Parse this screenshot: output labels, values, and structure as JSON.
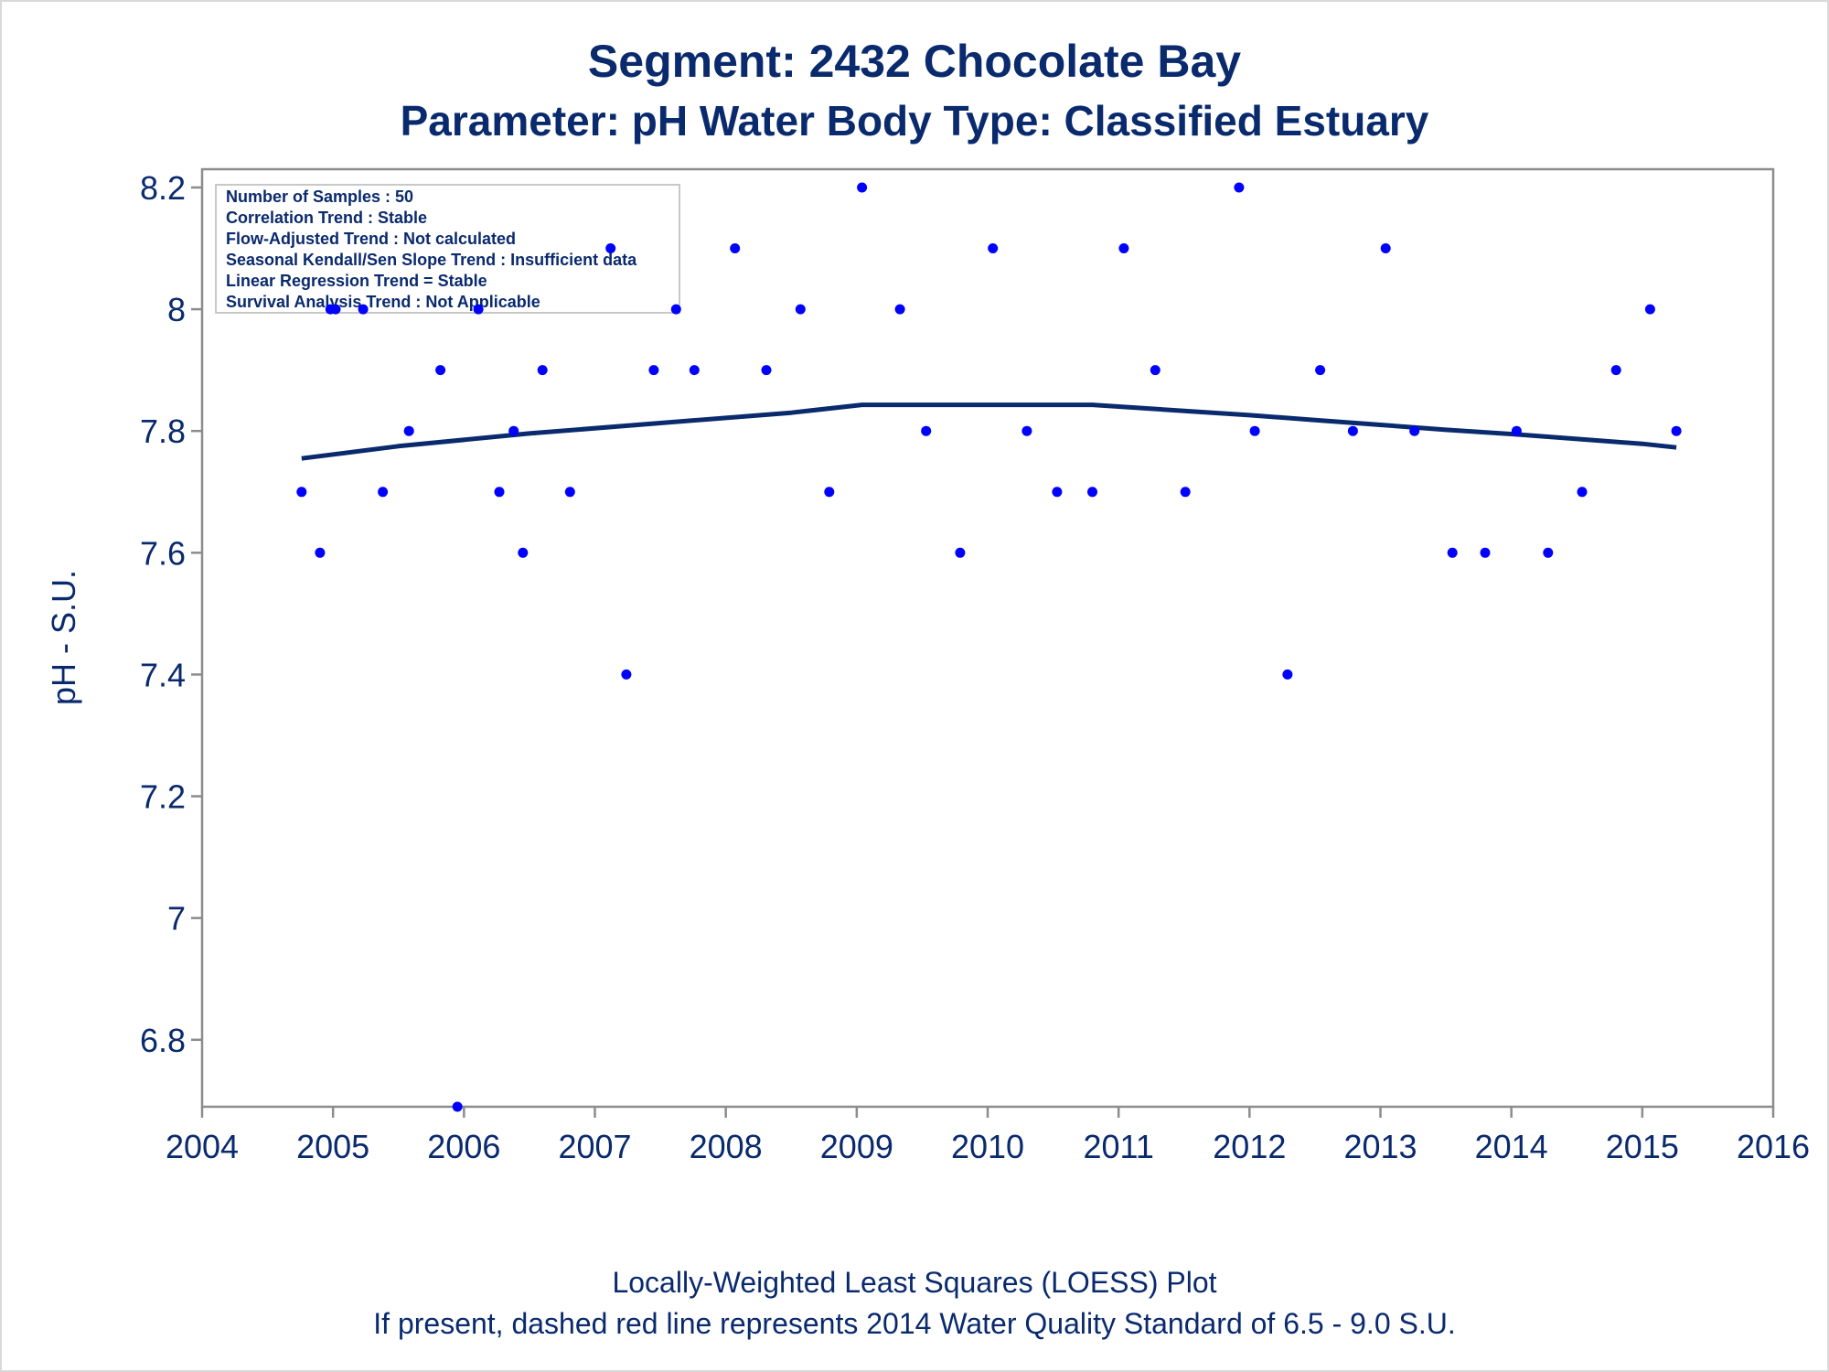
{
  "chart_data": {
    "type": "scatter",
    "title": "Segment: 2432  Chocolate Bay",
    "subtitle": "Parameter: pH   Water Body Type: Classified Estuary",
    "xlabel": "",
    "ylabel": "pH - S.U.",
    "xlim": [
      2004,
      2016
    ],
    "ylim": [
      6.69,
      8.23
    ],
    "x_ticks": [
      "2004",
      "2005",
      "2006",
      "2007",
      "2008",
      "2009",
      "2010",
      "2011",
      "2012",
      "2013",
      "2014",
      "2015",
      "2016"
    ],
    "y_ticks": [
      "6.8",
      "7",
      "7.2",
      "7.4",
      "7.6",
      "7.8",
      "8",
      "8.2"
    ],
    "grid": false,
    "inset_lines": [
      "Number of Samples : 50",
      "Correlation Trend : Stable",
      "Flow-Adjusted Trend : Not calculated",
      "Seasonal Kendall/Sen Slope Trend : Insufficient data",
      "Linear Regression Trend = Stable",
      "Survival Analysis Trend : Not Applicable"
    ],
    "footnotes": [
      "Locally-Weighted Least Squares (LOESS) Plot",
      "If present, dashed red line represents 2014 Water Quality Standard of 6.5 - 9.0 S.U."
    ],
    "series": [
      {
        "type": "scatter",
        "color": "#0000ff",
        "points": [
          [
            2004.76,
            7.7
          ],
          [
            2004.9,
            7.6
          ],
          [
            2004.98,
            8.0
          ],
          [
            2005.02,
            8.0
          ],
          [
            2005.23,
            8.0
          ],
          [
            2005.38,
            7.7
          ],
          [
            2005.58,
            7.8
          ],
          [
            2005.82,
            7.9
          ],
          [
            2005.95,
            6.69
          ],
          [
            2006.11,
            8.0
          ],
          [
            2006.27,
            7.7
          ],
          [
            2006.38,
            7.8
          ],
          [
            2006.45,
            7.6
          ],
          [
            2006.6,
            7.9
          ],
          [
            2006.81,
            7.7
          ],
          [
            2007.12,
            8.1
          ],
          [
            2007.24,
            7.4
          ],
          [
            2007.45,
            7.9
          ],
          [
            2007.62,
            8.0
          ],
          [
            2007.76,
            7.9
          ],
          [
            2008.07,
            8.1
          ],
          [
            2008.31,
            7.9
          ],
          [
            2008.57,
            8.0
          ],
          [
            2008.79,
            7.7
          ],
          [
            2009.04,
            8.2
          ],
          [
            2009.33,
            8.0
          ],
          [
            2009.53,
            7.8
          ],
          [
            2009.79,
            7.6
          ],
          [
            2010.04,
            8.1
          ],
          [
            2010.3,
            7.8
          ],
          [
            2010.53,
            7.7
          ],
          [
            2010.8,
            7.7
          ],
          [
            2011.04,
            8.1
          ],
          [
            2011.28,
            7.9
          ],
          [
            2011.51,
            7.7
          ],
          [
            2011.92,
            8.2
          ],
          [
            2012.04,
            7.8
          ],
          [
            2012.29,
            7.4
          ],
          [
            2012.54,
            7.9
          ],
          [
            2012.79,
            7.8
          ],
          [
            2013.04,
            8.1
          ],
          [
            2013.26,
            7.8
          ],
          [
            2013.55,
            7.6
          ],
          [
            2013.8,
            7.6
          ],
          [
            2014.04,
            7.8
          ],
          [
            2014.28,
            7.6
          ],
          [
            2014.54,
            7.7
          ],
          [
            2014.8,
            7.9
          ],
          [
            2015.06,
            8.0
          ],
          [
            2015.26,
            7.8
          ]
        ]
      },
      {
        "type": "line",
        "color": "#0a2a6e",
        "points": [
          [
            2004.76,
            7.755
          ],
          [
            2005.5,
            7.775
          ],
          [
            2006.5,
            7.796
          ],
          [
            2007.5,
            7.813
          ],
          [
            2008.5,
            7.83
          ],
          [
            2009.04,
            7.843
          ],
          [
            2010.0,
            7.843
          ],
          [
            2010.8,
            7.843
          ],
          [
            2011.5,
            7.833
          ],
          [
            2012.0,
            7.826
          ],
          [
            2012.5,
            7.818
          ],
          [
            2013.0,
            7.81
          ],
          [
            2013.5,
            7.802
          ],
          [
            2014.0,
            7.795
          ],
          [
            2014.5,
            7.787
          ],
          [
            2015.0,
            7.779
          ],
          [
            2015.26,
            7.773
          ]
        ]
      }
    ]
  }
}
